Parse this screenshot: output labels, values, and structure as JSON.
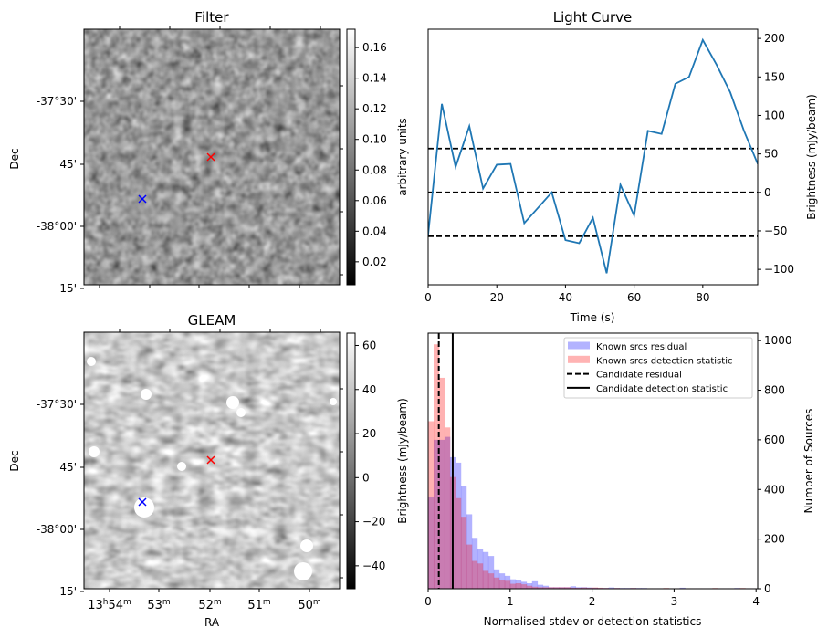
{
  "chart_data": [
    {
      "type": "heatmap",
      "id": "filter",
      "title": "Filter",
      "ylabel": "Dec",
      "xlabel": "",
      "y_tick_labels": [
        "-37°30'",
        "45'",
        "-38°00'",
        "15'"
      ],
      "x_tick_labels": [],
      "colorbar": {
        "label": "arbitrary units",
        "ticks": [
          "0.02",
          "0.04",
          "0.06",
          "0.08",
          "0.10",
          "0.12",
          "0.14",
          "0.16"
        ],
        "range": [
          0.005,
          0.172
        ],
        "colormap": "gray"
      },
      "markers": [
        {
          "name": "candidate",
          "symbol": "x",
          "color": "#ff0000",
          "ra": "13h52m00s",
          "dec": "-37°48'"
        },
        {
          "name": "known-source",
          "symbol": "x",
          "color": "#0000ff",
          "ra": "13h53m20s",
          "dec": "-38°00'"
        }
      ]
    },
    {
      "type": "line",
      "id": "light_curve",
      "title": "Light Curve",
      "xlabel": "Time (s)",
      "ylabel": "Brightness (mJy/beam)",
      "xlim": [
        0,
        96
      ],
      "ylim": [
        -120,
        212
      ],
      "x_ticks": [
        0,
        20,
        40,
        60,
        80
      ],
      "y_ticks": [
        -100,
        -50,
        0,
        50,
        100,
        150,
        200
      ],
      "y_tick_labels": [
        "−100",
        "−50",
        "0",
        "50",
        "100",
        "150",
        "200"
      ],
      "series": [
        {
          "name": "light curve",
          "color": "#1f77b4",
          "x": [
            0,
            4,
            8,
            12,
            16,
            20,
            24,
            28,
            32,
            36,
            40,
            44,
            48,
            52,
            56,
            60,
            64,
            68,
            72,
            76,
            80,
            84,
            88,
            92,
            96
          ],
          "y": [
            -55,
            115,
            33,
            86,
            5,
            36,
            37,
            -40,
            -20,
            0,
            -62,
            -66,
            -33,
            -105,
            10,
            -30,
            80,
            76,
            141,
            150,
            198,
            166,
            130,
            80,
            37
          ]
        }
      ],
      "hlines": [
        {
          "y": 57,
          "style": "dashed",
          "color": "#000000"
        },
        {
          "y": 0,
          "style": "dashed",
          "color": "#000000"
        },
        {
          "y": -57,
          "style": "dashed",
          "color": "#000000"
        }
      ]
    },
    {
      "type": "heatmap",
      "id": "gleam",
      "title": "GLEAM",
      "ylabel": "Dec",
      "xlabel": "RA",
      "y_tick_labels": [
        "-37°30'",
        "45'",
        "-38°00'",
        "15'"
      ],
      "x_tick_labels": [
        {
          "main": "13",
          "sup1": "h",
          "main2": "54",
          "sup2": "m"
        },
        {
          "main": "",
          "sup1": "",
          "main2": "53",
          "sup2": "m"
        },
        {
          "main": "",
          "sup1": "",
          "main2": "52",
          "sup2": "m"
        },
        {
          "main": "",
          "sup1": "",
          "main2": "51",
          "sup2": "m"
        },
        {
          "main": "",
          "sup1": "",
          "main2": "50",
          "sup2": "m"
        }
      ],
      "colorbar": {
        "label": "Brightness (mJy/beam)",
        "ticks": [
          "−40",
          "−20",
          "0",
          "20",
          "40",
          "60"
        ],
        "range": [
          -50,
          66
        ],
        "colormap": "gray"
      },
      "markers": [
        {
          "name": "candidate",
          "symbol": "x",
          "color": "#ff0000",
          "ra": "13h52m00s",
          "dec": "-37°48'"
        },
        {
          "name": "known-source",
          "symbol": "x",
          "color": "#0000ff",
          "ra": "13h53m20s",
          "dec": "-38°00'"
        }
      ]
    },
    {
      "type": "bar",
      "subtype": "histogram",
      "id": "histogram",
      "title": "",
      "xlabel": "Normalised stdev or detection statistics",
      "ylabel": "Number of Sources",
      "xlim": [
        0,
        4.02
      ],
      "ylim": [
        0,
        1030
      ],
      "x_ticks": [
        0,
        1,
        2,
        3,
        4
      ],
      "y_ticks": [
        0,
        200,
        400,
        600,
        800,
        1000
      ],
      "bin_width": 0.0667,
      "series": [
        {
          "name": "Known srcs residual",
          "color": "#0000ff",
          "alpha": 0.3,
          "values": [
            370,
            600,
            600,
            612,
            530,
            508,
            415,
            300,
            205,
            160,
            148,
            132,
            78,
            62,
            52,
            38,
            36,
            28,
            22,
            30,
            16,
            12,
            6,
            6,
            6,
            6,
            10,
            6,
            6,
            5,
            4,
            3,
            3,
            5,
            3,
            3,
            3,
            3,
            3,
            3,
            2,
            2,
            2,
            2,
            2,
            2,
            4,
            2,
            2,
            2,
            2,
            2,
            2,
            2,
            2,
            2,
            3,
            2,
            2,
            2
          ]
        },
        {
          "name": "Known srcs detection statistic",
          "color": "#ff0000",
          "alpha": 0.3,
          "values": [
            675,
            985,
            850,
            650,
            450,
            365,
            290,
            178,
            112,
            102,
            72,
            62,
            45,
            36,
            32,
            20,
            22,
            18,
            12,
            8,
            6,
            6,
            6,
            6,
            6,
            6,
            4,
            4,
            5,
            4,
            5,
            4,
            3,
            2,
            3,
            2,
            2,
            3,
            2,
            2,
            2,
            2,
            2,
            3,
            2,
            2,
            2,
            2,
            2,
            2,
            2,
            2,
            3,
            2,
            2,
            2,
            2,
            3,
            2,
            2
          ]
        }
      ],
      "vlines": [
        {
          "name": "Candidate residual",
          "x": 0.13,
          "style": "dashed",
          "color": "#000000"
        },
        {
          "name": "Candidate detection statistic",
          "x": 0.3,
          "style": "solid",
          "color": "#000000"
        }
      ],
      "legend": {
        "placement": "top-right",
        "entries": [
          {
            "label": "Known srcs residual",
            "kind": "patch",
            "color": "#b3b3ff"
          },
          {
            "label": "Known srcs detection statistic",
            "kind": "patch",
            "color": "#ffb3b3"
          },
          {
            "label": "Candidate residual",
            "kind": "dashed-line",
            "color": "#000000"
          },
          {
            "label": "Candidate detection statistic",
            "kind": "solid-line",
            "color": "#000000"
          }
        ]
      }
    }
  ]
}
